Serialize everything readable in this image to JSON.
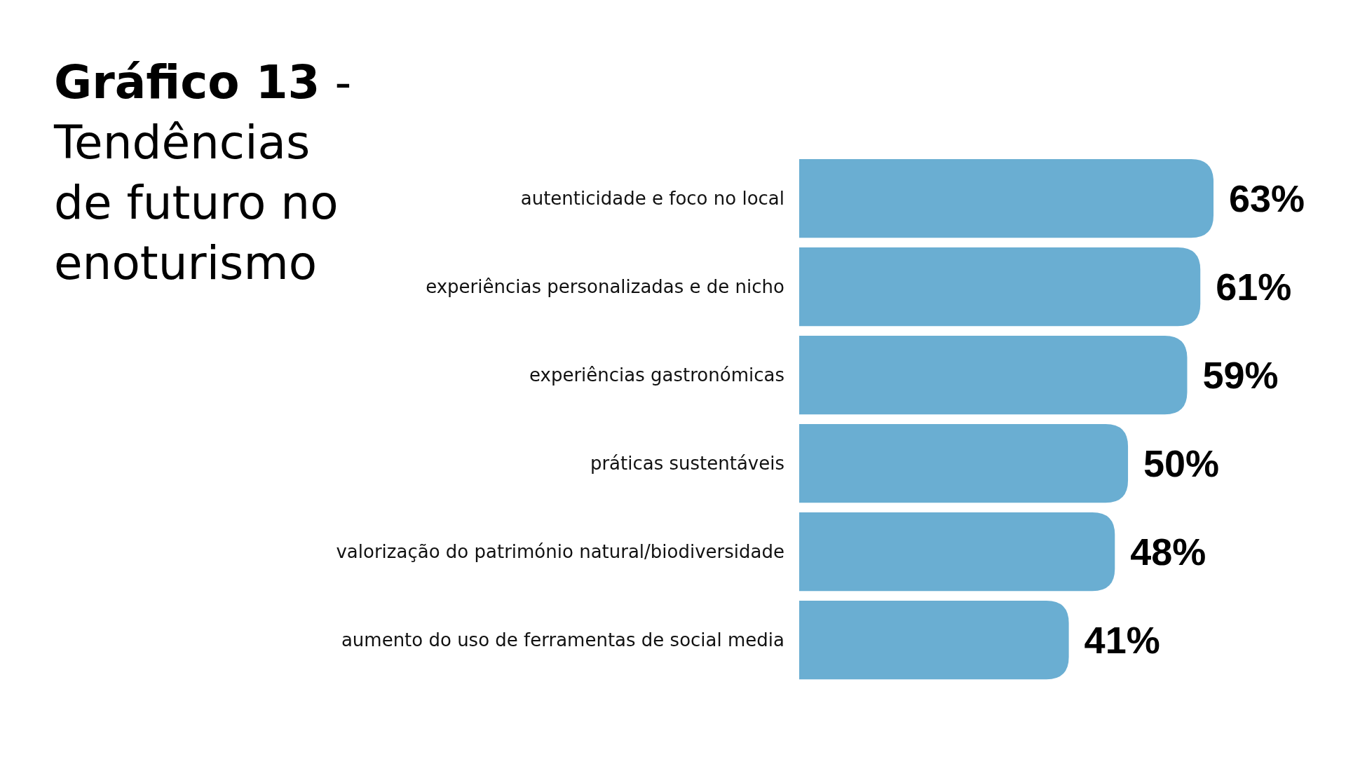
{
  "chart_data": {
    "type": "bar",
    "orientation": "horizontal",
    "title": "Gráfico 13 - Tendências de futuro no enoturismo",
    "categories": [
      "autenticidade e foco no local",
      "experiências personalizadas e de nicho",
      "experiências gastronómicas",
      "práticas sustentáveis",
      "valorização do património natural/biodiversidade",
      "aumento do uso de ferramentas de social media"
    ],
    "values": [
      63,
      61,
      59,
      50,
      48,
      41
    ],
    "value_labels": [
      "63%",
      "61%",
      "59%",
      "50%",
      "48%",
      "41%"
    ],
    "color": "#6aaed2"
  }
}
